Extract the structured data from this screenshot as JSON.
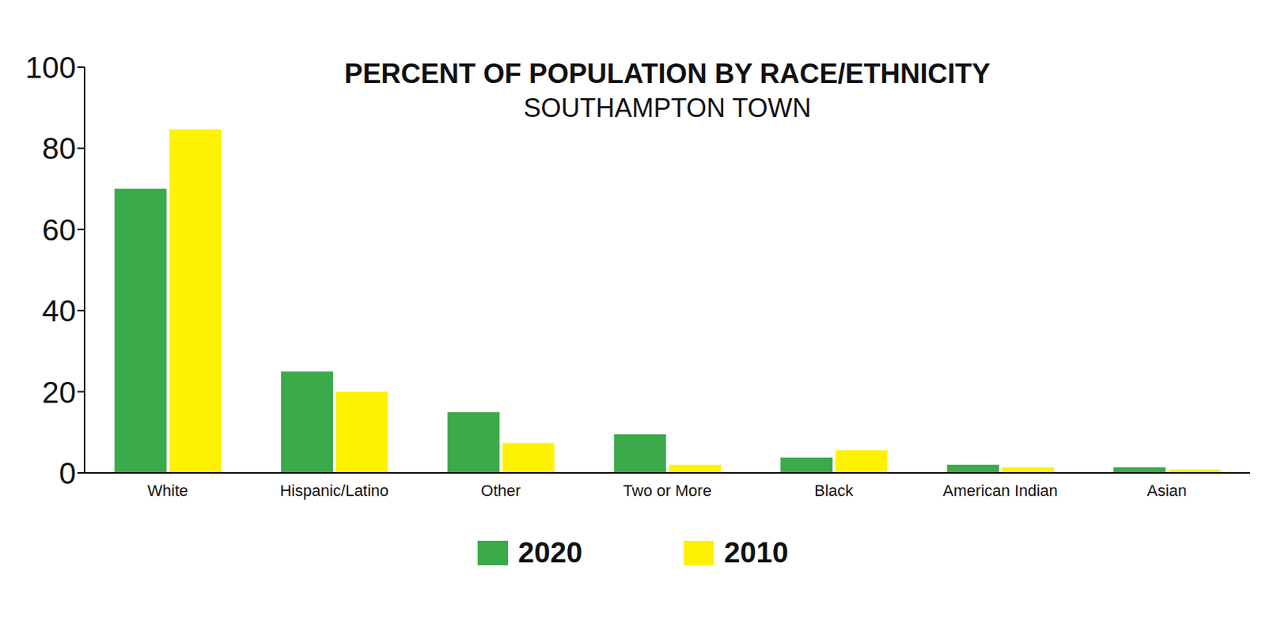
{
  "chart_data": {
    "type": "bar",
    "title": "PERCENT OF POPULATION BY RACE/ETHNICITY",
    "subtitle": "SOUTHAMPTON TOWN",
    "categories": [
      "White",
      "Hispanic/Latino",
      "Other",
      "Two or More",
      "Black",
      "American Indian",
      "Asian"
    ],
    "series": [
      {
        "name": "2020",
        "color": "#3aaa4a",
        "values": [
          70,
          25,
          15,
          9.5,
          3.8,
          2,
          1.4
        ]
      },
      {
        "name": "2010",
        "color": "#fff200",
        "values": [
          84.7,
          20,
          7.4,
          2,
          5.6,
          1.4,
          0.8
        ]
      }
    ],
    "ylim": [
      0,
      100
    ],
    "yticks": [
      0,
      20,
      40,
      60,
      80,
      100
    ],
    "grid": false,
    "legend": "bottom"
  }
}
